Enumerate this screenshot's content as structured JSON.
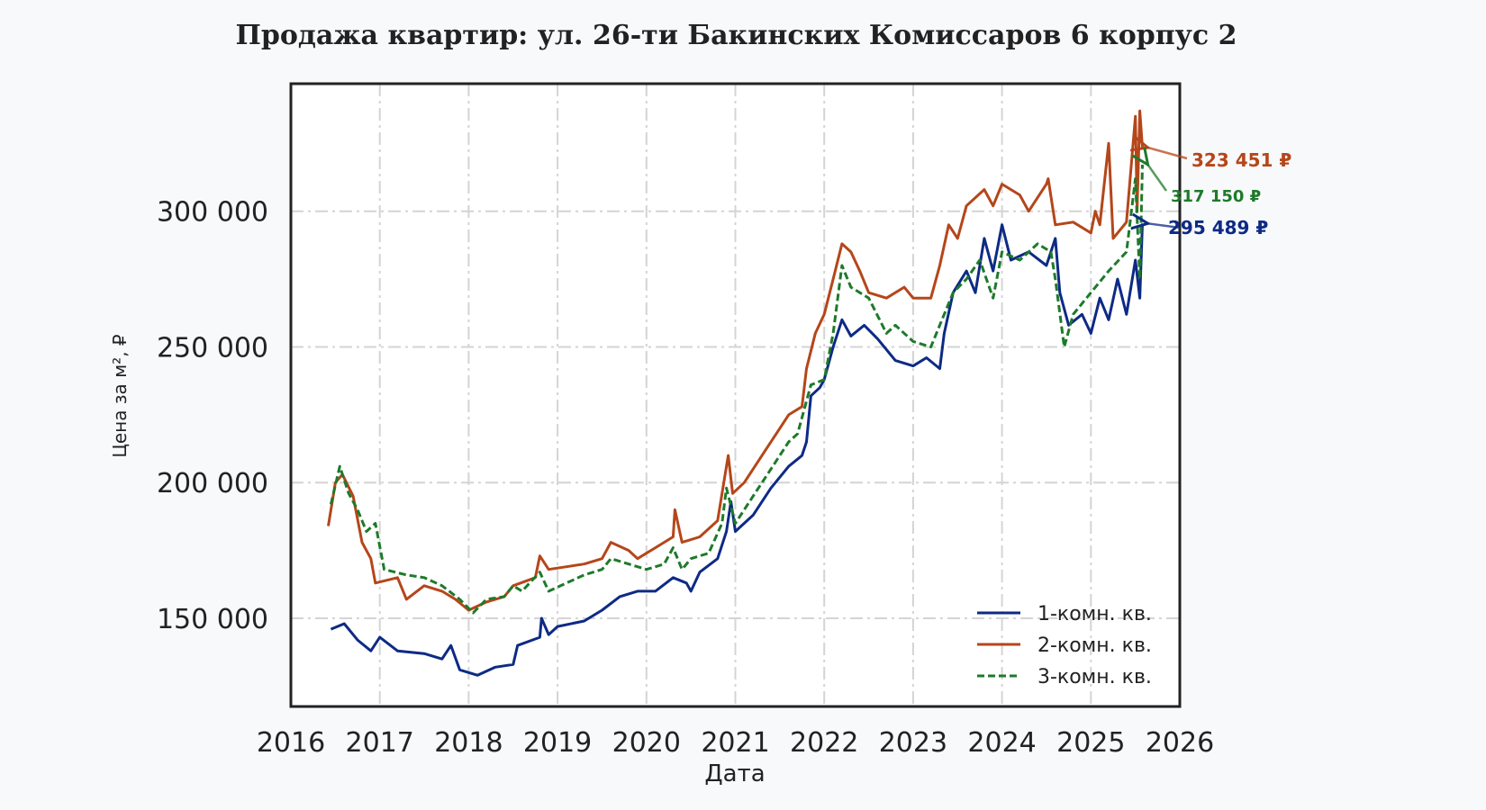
{
  "chart_data": {
    "type": "line",
    "title": "Продажа квартир: ул. 26-ти Бакинских Комиссаров 6 корпус 2",
    "xlabel": "Дата",
    "ylabel": "Цена за м², ₽",
    "xlim": [
      2016,
      2026
    ],
    "ylim": [
      117500,
      347000
    ],
    "x_ticks": [
      "2016",
      "2017",
      "2018",
      "2019",
      "2020",
      "2021",
      "2022",
      "2023",
      "2024",
      "2025",
      "2026"
    ],
    "y_ticks": [
      {
        "value": 150000,
        "label": "150 000"
      },
      {
        "value": 200000,
        "label": "200 000"
      },
      {
        "value": 250000,
        "label": "250 000"
      },
      {
        "value": 300000,
        "label": "300 000"
      }
    ],
    "grid": true,
    "legend_position": "bottom-right",
    "series": [
      {
        "name": "1-комн. кв.",
        "color": "#0d2a85",
        "style": "solid",
        "last_label": "295 489 ₽",
        "x": [
          2016.45,
          2016.6,
          2016.75,
          2016.9,
          2017.0,
          2017.2,
          2017.5,
          2017.7,
          2017.8,
          2017.9,
          2018.1,
          2018.3,
          2018.5,
          2018.55,
          2018.8,
          2018.82,
          2018.9,
          2019.0,
          2019.3,
          2019.5,
          2019.7,
          2019.9,
          2020.1,
          2020.3,
          2020.45,
          2020.5,
          2020.6,
          2020.8,
          2020.9,
          2020.95,
          2021.0,
          2021.2,
          2021.4,
          2021.6,
          2021.75,
          2021.8,
          2021.85,
          2021.95,
          2022.0,
          2022.1,
          2022.2,
          2022.3,
          2022.45,
          2022.6,
          2022.8,
          2023.0,
          2023.15,
          2023.3,
          2023.35,
          2023.45,
          2023.6,
          2023.7,
          2023.8,
          2023.9,
          2024.0,
          2024.1,
          2024.3,
          2024.5,
          2024.6,
          2024.65,
          2024.75,
          2024.9,
          2025.0,
          2025.1,
          2025.2,
          2025.3,
          2025.4,
          2025.5,
          2025.55,
          2025.58
        ],
        "y": [
          146000,
          148000,
          142000,
          138000,
          143000,
          138000,
          137000,
          135000,
          140000,
          131000,
          129000,
          132000,
          133000,
          140000,
          143000,
          150000,
          144000,
          147000,
          149000,
          153000,
          158000,
          160000,
          160000,
          165000,
          163000,
          160000,
          167000,
          172000,
          182000,
          193000,
          182000,
          188000,
          198000,
          206000,
          210000,
          215000,
          232000,
          235000,
          238000,
          250000,
          260000,
          254000,
          258000,
          253000,
          245000,
          243000,
          246000,
          242000,
          255000,
          270000,
          278000,
          270000,
          290000,
          278000,
          295000,
          282000,
          285000,
          280000,
          290000,
          270000,
          258000,
          262000,
          255000,
          268000,
          260000,
          275000,
          262000,
          282000,
          268000,
          295489
        ]
      },
      {
        "name": "2-комн. кв.",
        "color": "#b5461a",
        "style": "solid",
        "last_label": "323 451 ₽",
        "x": [
          2016.42,
          2016.5,
          2016.58,
          2016.7,
          2016.8,
          2016.9,
          2016.95,
          2017.2,
          2017.3,
          2017.5,
          2017.7,
          2017.85,
          2018.0,
          2018.2,
          2018.4,
          2018.5,
          2018.75,
          2018.8,
          2018.9,
          2019.1,
          2019.3,
          2019.5,
          2019.6,
          2019.8,
          2019.9,
          2020.1,
          2020.3,
          2020.32,
          2020.4,
          2020.6,
          2020.8,
          2020.92,
          2020.97,
          2021.1,
          2021.3,
          2021.5,
          2021.6,
          2021.75,
          2021.8,
          2021.9,
          2022.0,
          2022.1,
          2022.2,
          2022.3,
          2022.4,
          2022.5,
          2022.7,
          2022.9,
          2023.0,
          2023.2,
          2023.3,
          2023.4,
          2023.5,
          2023.6,
          2023.8,
          2023.9,
          2024.0,
          2024.2,
          2024.3,
          2024.5,
          2024.52,
          2024.6,
          2024.8,
          2025.0,
          2025.05,
          2025.1,
          2025.2,
          2025.25,
          2025.4,
          2025.5,
          2025.52,
          2025.55,
          2025.58
        ],
        "y": [
          184000,
          200000,
          203000,
          195000,
          178000,
          172000,
          163000,
          165000,
          157000,
          162000,
          160000,
          157000,
          153000,
          156000,
          158000,
          162000,
          165000,
          173000,
          168000,
          169000,
          170000,
          172000,
          178000,
          175000,
          172000,
          176000,
          180000,
          190000,
          178000,
          180000,
          186000,
          210000,
          196000,
          200000,
          210000,
          220000,
          225000,
          228000,
          242000,
          255000,
          262000,
          275000,
          288000,
          285000,
          278000,
          270000,
          268000,
          272000,
          268000,
          268000,
          280000,
          295000,
          290000,
          302000,
          308000,
          302000,
          310000,
          306000,
          300000,
          310000,
          312000,
          295000,
          296000,
          292000,
          300000,
          295000,
          325000,
          290000,
          296000,
          335000,
          300000,
          337000,
          323451
        ]
      },
      {
        "name": "3-комн. кв.",
        "color": "#1e7a2a",
        "style": "dashed",
        "last_label": "317 150 ₽",
        "x": [
          2016.45,
          2016.55,
          2016.65,
          2016.75,
          2016.85,
          2016.95,
          2017.05,
          2017.3,
          2017.5,
          2017.7,
          2017.9,
          2018.05,
          2018.2,
          2018.4,
          2018.5,
          2018.6,
          2018.8,
          2018.9,
          2019.1,
          2019.3,
          2019.5,
          2019.6,
          2019.8,
          2020.0,
          2020.2,
          2020.3,
          2020.4,
          2020.5,
          2020.7,
          2020.85,
          2020.9,
          2021.0,
          2021.2,
          2021.4,
          2021.6,
          2021.7,
          2021.85,
          2022.0,
          2022.1,
          2022.2,
          2022.3,
          2022.5,
          2022.7,
          2022.8,
          2023.0,
          2023.2,
          2023.35,
          2023.45,
          2023.6,
          2023.75,
          2023.9,
          2024.0,
          2024.2,
          2024.4,
          2024.55,
          2024.6,
          2024.7,
          2024.8,
          2025.0,
          2025.2,
          2025.4,
          2025.5,
          2025.55,
          2025.58
        ],
        "y": [
          192000,
          206000,
          196000,
          190000,
          182000,
          185000,
          168000,
          166000,
          165000,
          162000,
          157000,
          152000,
          157000,
          158000,
          162000,
          160000,
          167000,
          160000,
          163000,
          166000,
          168000,
          172000,
          170000,
          168000,
          170000,
          176000,
          168000,
          172000,
          174000,
          185000,
          198000,
          185000,
          195000,
          205000,
          215000,
          218000,
          236000,
          238000,
          255000,
          280000,
          272000,
          268000,
          255000,
          258000,
          252000,
          250000,
          262000,
          270000,
          275000,
          282000,
          268000,
          285000,
          282000,
          288000,
          285000,
          275000,
          250000,
          262000,
          270000,
          278000,
          285000,
          312000,
          275000,
          317150
        ]
      }
    ]
  }
}
